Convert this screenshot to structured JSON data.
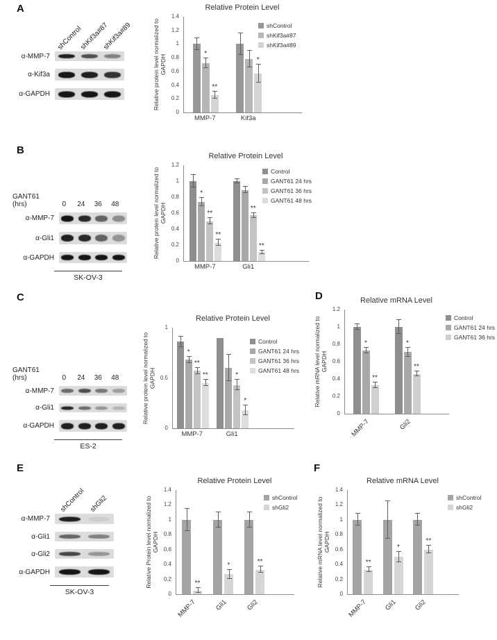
{
  "panels": {
    "A": "A",
    "B": "B",
    "C": "C",
    "D": "D",
    "E": "E",
    "F": "F"
  },
  "blots": {
    "A": {
      "lane_style": "rotated",
      "lane_labels": [
        "shControl",
        "shKif3a#87",
        "shKif3a#89"
      ],
      "rows": [
        {
          "label": "α-MMP-7",
          "band_h": 6,
          "bands": [
            0.95,
            0.7,
            0.45
          ]
        },
        {
          "label": "α-Kif3a",
          "band_h": 9,
          "bands": [
            1,
            0.95,
            0.85
          ]
        },
        {
          "label": "α-GAPDH",
          "band_h": 9,
          "bands": [
            1,
            1,
            1
          ]
        }
      ],
      "footer": ""
    },
    "B": {
      "lane_style": "numbers",
      "header_label": "GANT61 (hrs)",
      "lane_labels": [
        "0",
        "24",
        "36",
        "48"
      ],
      "rows": [
        {
          "label": "α-MMP-7",
          "band_h": 9,
          "bands": [
            1,
            0.9,
            0.6,
            0.4
          ]
        },
        {
          "label": "α-Gli1",
          "band_h": 10,
          "bands": [
            0.95,
            0.9,
            0.6,
            0.35
          ]
        },
        {
          "label": "α-GAPDH",
          "band_h": 8,
          "bands": [
            1,
            1,
            1,
            1
          ]
        }
      ],
      "footer": "SK-OV-3"
    },
    "C": {
      "lane_style": "numbers",
      "header_label": "GANT61 (hrs)",
      "lane_labels": [
        "0",
        "24",
        "36",
        "48"
      ],
      "rows": [
        {
          "label": "α-MMP-7",
          "band_h": 6,
          "bands": [
            0.55,
            0.7,
            0.5,
            0.3
          ]
        },
        {
          "label": "α-Gli1",
          "band_h": 5,
          "bands": [
            0.9,
            0.55,
            0.35,
            0.2
          ]
        },
        {
          "label": "α-GAPDH",
          "band_h": 9,
          "bands": [
            0.95,
            0.95,
            0.95,
            0.95
          ]
        }
      ],
      "footer": "ES-2"
    },
    "E": {
      "lane_style": "rotated",
      "lane_labels": [
        "shControl",
        "shGli2"
      ],
      "rows": [
        {
          "label": "α-MMP-7",
          "band_h": 7,
          "bands": [
            0.95,
            0.07
          ]
        },
        {
          "label": "α-Gli1",
          "band_h": 6,
          "bands": [
            0.6,
            0.45
          ]
        },
        {
          "label": "α-Gli2",
          "band_h": 6,
          "bands": [
            0.75,
            0.35
          ]
        },
        {
          "label": "α-GAPDH",
          "band_h": 8,
          "bands": [
            1,
            1
          ]
        }
      ],
      "footer": "SK-OV-3"
    }
  },
  "chart_data": [
    {
      "panel": "A",
      "type": "bar",
      "title": "Relative Protein Level",
      "ylabel": "Relative protein level normalized to GAPDH",
      "categories": [
        "MMP-7",
        "Kif3a"
      ],
      "ylim": [
        0,
        1.4
      ],
      "ystep": 0.2,
      "legend_position": "right",
      "series": [
        {
          "name": "shControl",
          "color": "#979797",
          "values": [
            1.0,
            1.0
          ],
          "errors": [
            0.09,
            0.16
          ],
          "sig": [
            "",
            ""
          ]
        },
        {
          "name": "shKif3a#87",
          "color": "#b6b6b6",
          "values": [
            0.72,
            0.78
          ],
          "errors": [
            0.07,
            0.12
          ],
          "sig": [
            "*",
            ""
          ]
        },
        {
          "name": "shKif3a#89",
          "color": "#d4d4d4",
          "values": [
            0.25,
            0.57
          ],
          "errors": [
            0.05,
            0.13
          ],
          "sig": [
            "**",
            "*"
          ]
        }
      ]
    },
    {
      "panel": "B",
      "type": "bar",
      "title": "Relative Protein Level",
      "ylabel": "Relative protein level normalized to GAPDH",
      "categories": [
        "MMP-7",
        "Gli1"
      ],
      "ylim": [
        0,
        1.2
      ],
      "ystep": 0.2,
      "legend_position": "right",
      "series": [
        {
          "name": "Control",
          "color": "#8e8e8e",
          "values": [
            1.0,
            1.0
          ],
          "errors": [
            0.08,
            0.03
          ],
          "sig": [
            "",
            ""
          ]
        },
        {
          "name": "GANT61 24 hrs",
          "color": "#a9a9a9",
          "values": [
            0.74,
            0.89
          ],
          "errors": [
            0.05,
            0.04
          ],
          "sig": [
            "*",
            ""
          ]
        },
        {
          "name": "GANT61 36 hrs",
          "color": "#c3c3c3",
          "values": [
            0.5,
            0.57
          ],
          "errors": [
            0.04,
            0.03
          ],
          "sig": [
            "**",
            "**"
          ]
        },
        {
          "name": "GANT61 48 hrs",
          "color": "#dddddd",
          "values": [
            0.23,
            0.11
          ],
          "errors": [
            0.04,
            0.02
          ],
          "sig": [
            "**",
            "**"
          ]
        }
      ]
    },
    {
      "panel": "C",
      "type": "bar",
      "title": "Relative Protein Level",
      "ylabel": "Relative protein level normalized to GAPDH",
      "categories": [
        "MMP-7",
        "Gli1"
      ],
      "ylim": [
        0,
        1.0
      ],
      "ystep": 0.5,
      "legend_position": "right",
      "series": [
        {
          "name": "Control",
          "color": "#8e8e8e",
          "values": [
            0.86,
            0.9
          ],
          "errors": [
            0.05,
            0
          ],
          "sig": [
            "",
            ""
          ]
        },
        {
          "name": "GANT61 24 hrs",
          "color": "#a9a9a9",
          "values": [
            0.68,
            0.6
          ],
          "errors": [
            0.03,
            0.13
          ],
          "sig": [
            "*",
            ""
          ]
        },
        {
          "name": "GANT61 36 hrs",
          "color": "#c3c3c3",
          "values": [
            0.57,
            0.43
          ],
          "errors": [
            0.03,
            0.05
          ],
          "sig": [
            "**",
            "*"
          ]
        },
        {
          "name": "GANT61 48 hrs",
          "color": "#dddddd",
          "values": [
            0.45,
            0.18
          ],
          "errors": [
            0.03,
            0.05
          ],
          "sig": [
            "**",
            "*"
          ]
        }
      ]
    },
    {
      "panel": "D",
      "type": "bar",
      "title": "Relative mRNA Level",
      "ylabel": "Relative mRNA level normalized to GAPDH",
      "categories": [
        "MMP-7",
        "Gli2"
      ],
      "ylim": [
        0,
        1.2
      ],
      "ystep": 0.2,
      "legend_position": "right",
      "series": [
        {
          "name": "Control",
          "color": "#8e8e8e",
          "values": [
            1.0,
            1.0
          ],
          "errors": [
            0.03,
            0.08
          ],
          "sig": [
            "",
            ""
          ]
        },
        {
          "name": "GANT61 24 hrs",
          "color": "#a9a9a9",
          "values": [
            0.73,
            0.71
          ],
          "errors": [
            0.03,
            0.05
          ],
          "sig": [
            "*",
            "*"
          ]
        },
        {
          "name": "GANT61 36 hrs",
          "color": "#d0d0d0",
          "values": [
            0.33,
            0.46
          ],
          "errors": [
            0.03,
            0.03
          ],
          "sig": [
            "**",
            "**"
          ]
        }
      ]
    },
    {
      "panel": "E",
      "type": "bar",
      "title": "Relative Protein Level",
      "ylabel": "Relative Protein level normalized to GAPDH",
      "categories": [
        "MMP-7",
        "Gli1",
        "Gli2"
      ],
      "ylim": [
        0,
        1.4
      ],
      "ystep": 0.2,
      "legend_position": "right",
      "series": [
        {
          "name": "shControl",
          "color": "#a4a4a4",
          "values": [
            1.0,
            1.0,
            1.0
          ],
          "errors": [
            0.15,
            0.1,
            0.1
          ],
          "sig": [
            "",
            "",
            ""
          ]
        },
        {
          "name": "shGli2",
          "color": "#d6d6d6",
          "values": [
            0.05,
            0.27,
            0.33
          ],
          "errors": [
            0.03,
            0.06,
            0.04
          ],
          "sig": [
            "**",
            "*",
            "**"
          ]
        }
      ]
    },
    {
      "panel": "F",
      "type": "bar",
      "title": "Relative mRNA Level",
      "ylabel": "Relative mRNA level normalized to GAPDH",
      "categories": [
        "MMP-7",
        "Gli1",
        "Gli2"
      ],
      "ylim": [
        0,
        1.4
      ],
      "ystep": 0.2,
      "legend_position": "right",
      "series": [
        {
          "name": "shControl",
          "color": "#a4a4a4",
          "values": [
            1.0,
            1.0,
            1.0
          ],
          "errors": [
            0.08,
            0.25,
            0.08
          ],
          "sig": [
            "",
            "",
            ""
          ]
        },
        {
          "name": "shGli2",
          "color": "#d6d6d6",
          "values": [
            0.33,
            0.5,
            0.6
          ],
          "errors": [
            0.03,
            0.07,
            0.05
          ],
          "sig": [
            "**",
            "*",
            "**"
          ]
        }
      ]
    }
  ]
}
